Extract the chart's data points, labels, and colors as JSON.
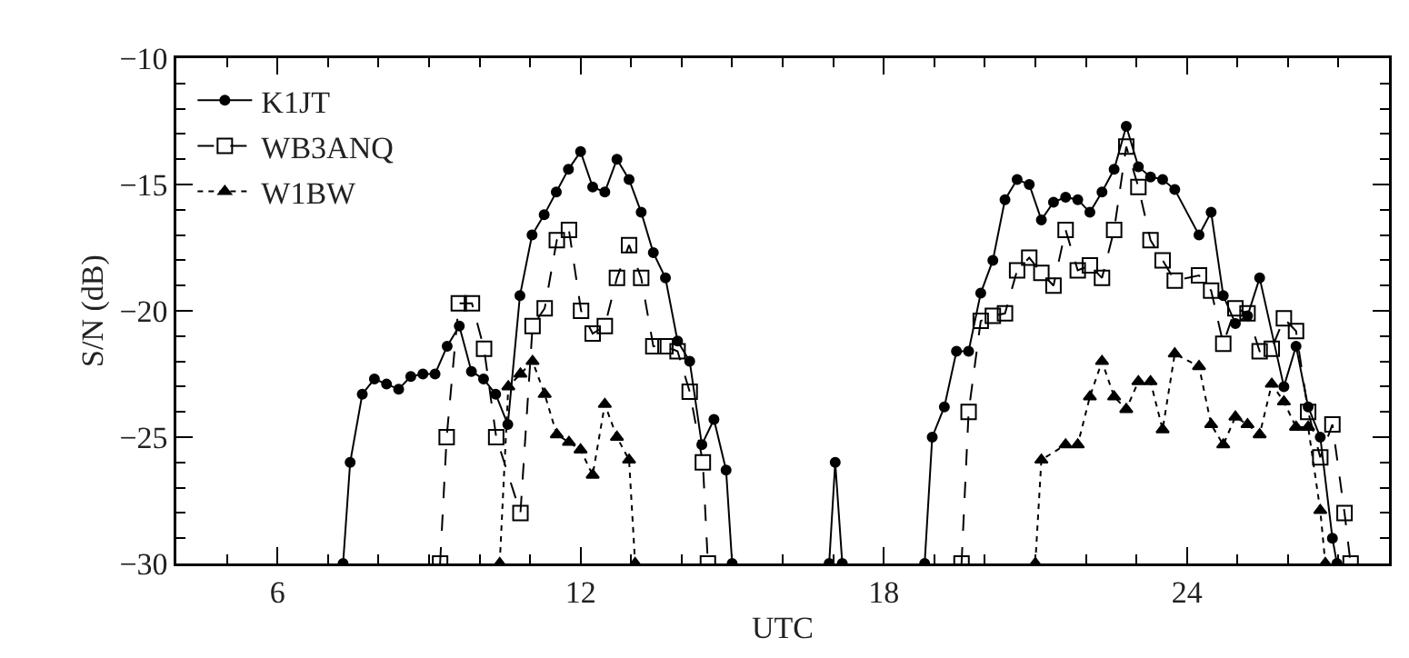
{
  "chart_data": {
    "type": "line",
    "xlabel": "UTC",
    "ylabel": "S/N (dB)",
    "xlim": [
      4,
      28
    ],
    "ylim": [
      -30,
      -10
    ],
    "xticks": [
      {
        "value": 5,
        "label": null
      },
      6,
      {
        "value": 7,
        "label": null
      },
      {
        "value": 8,
        "label": null
      },
      {
        "value": 9,
        "label": null
      },
      {
        "value": 10,
        "label": null
      },
      {
        "value": 11,
        "label": null
      },
      12,
      {
        "value": 13,
        "label": null
      },
      {
        "value": 14,
        "label": null
      },
      {
        "value": 15,
        "label": null
      },
      {
        "value": 16,
        "label": null
      },
      {
        "value": 17,
        "label": null
      },
      18,
      {
        "value": 19,
        "label": null
      },
      {
        "value": 20,
        "label": null
      },
      {
        "value": 21,
        "label": null
      },
      {
        "value": 22,
        "label": null
      },
      {
        "value": 23,
        "label": null
      },
      24,
      {
        "value": 25,
        "label": null
      },
      {
        "value": 26,
        "label": null
      },
      {
        "value": 27,
        "label": null
      }
    ],
    "yticks": [
      -30,
      {
        "value": -29,
        "label": null
      },
      {
        "value": -28,
        "label": null
      },
      {
        "value": -27,
        "label": null
      },
      {
        "value": -26,
        "label": null
      },
      -25,
      {
        "value": -24,
        "label": null
      },
      {
        "value": -23,
        "label": null
      },
      {
        "value": -22,
        "label": null
      },
      {
        "value": -21,
        "label": null
      },
      -20,
      {
        "value": -19,
        "label": null
      },
      {
        "value": -18,
        "label": null
      },
      {
        "value": -17,
        "label": null
      },
      {
        "value": -16,
        "label": null
      },
      -15,
      {
        "value": -14,
        "label": null
      },
      {
        "value": -13,
        "label": null
      },
      {
        "value": -12,
        "label": null
      },
      {
        "value": -11,
        "label": null
      },
      -10
    ],
    "grid": false,
    "legend": "top left",
    "series": [
      {
        "name": "K1JT",
        "color": "#000000",
        "marker": "circle",
        "line_style": "solid",
        "x": [
          7.3,
          7.44,
          7.68,
          7.92,
          8.16,
          8.4,
          8.64,
          8.88,
          9.12,
          9.36,
          9.6,
          9.84,
          10.08,
          10.32,
          10.56,
          10.8,
          11.04,
          11.28,
          11.52,
          11.76,
          12.0,
          12.24,
          12.48,
          12.72,
          12.96,
          13.2,
          13.44,
          13.68,
          13.92,
          14.16,
          14.4,
          14.64,
          14.88,
          15.0,
          16,
          16.92,
          17.04,
          17.18,
          18,
          18.81,
          18.96,
          19.2,
          19.44,
          19.68,
          19.92,
          20.16,
          20.4,
          20.64,
          20.88,
          21.12,
          21.36,
          21.6,
          21.84,
          22.08,
          22.32,
          22.56,
          22.8,
          23.04,
          23.28,
          23.52,
          23.76,
          24.24,
          24.48,
          24.72,
          24.96,
          25.2,
          25.44,
          25.92,
          26.16,
          26.4,
          26.64,
          26.88,
          26.97
        ],
        "values": [
          -30,
          -26.0,
          -23.3,
          -22.7,
          -22.9,
          -23.1,
          -22.6,
          -22.5,
          -22.5,
          -21.4,
          -20.6,
          -22.4,
          -22.7,
          -23.3,
          -24.5,
          -19.4,
          -17.0,
          -16.2,
          -15.3,
          -14.4,
          -13.7,
          -15.1,
          -15.3,
          -14.0,
          -14.8,
          -16.1,
          -17.7,
          -18.7,
          -21.2,
          -22.0,
          -25.3,
          -24.3,
          -26.3,
          -30,
          null,
          -30,
          -26.0,
          -30,
          null,
          -30,
          -25.0,
          -23.8,
          -21.6,
          -21.6,
          -19.3,
          -18.0,
          -15.6,
          -14.8,
          -15.0,
          -16.4,
          -15.7,
          -15.5,
          -15.6,
          -16.1,
          -15.3,
          -14.4,
          -12.7,
          -14.3,
          -14.7,
          -14.8,
          -15.2,
          -17.0,
          -16.1,
          -19.4,
          -20.5,
          -20.2,
          -18.7,
          -23.0,
          -21.4,
          -23.8,
          -25.0,
          -29.0,
          -30
        ]
      },
      {
        "name": "WB3ANQ",
        "color": "#000000",
        "marker": "square",
        "line_style": "dashed",
        "x": [
          9.22,
          9.35,
          9.59,
          9.85,
          10.09,
          10.33,
          10.81,
          11.05,
          11.29,
          11.53,
          11.77,
          12.01,
          12.24,
          12.48,
          12.72,
          12.96,
          13.2,
          13.44,
          13.68,
          13.92,
          14.16,
          14.42,
          14.52,
          17,
          19.54,
          19.68,
          19.92,
          20.16,
          20.4,
          20.64,
          20.88,
          21.12,
          21.36,
          21.6,
          21.84,
          22.08,
          22.32,
          22.56,
          22.8,
          23.04,
          23.28,
          23.52,
          23.76,
          24.24,
          24.48,
          24.72,
          24.96,
          25.2,
          25.44,
          25.68,
          25.92,
          26.16,
          26.4,
          26.64,
          26.88,
          27.12,
          27.24
        ],
        "values": [
          -30,
          -25.0,
          -19.7,
          -19.7,
          -21.5,
          -25.0,
          -28.0,
          -20.6,
          -19.9,
          -17.2,
          -16.8,
          -20.0,
          -20.9,
          -20.6,
          -18.7,
          -17.4,
          -18.7,
          -21.4,
          -21.4,
          -21.6,
          -23.2,
          -26.0,
          -30,
          null,
          -30,
          -24.0,
          -20.4,
          -20.2,
          -20.1,
          -18.4,
          -17.9,
          -18.5,
          -19.0,
          -16.8,
          -18.4,
          -18.2,
          -18.7,
          -16.8,
          -13.5,
          -15.1,
          -17.2,
          -18.0,
          -18.8,
          -18.6,
          -19.2,
          -21.3,
          -19.9,
          -20.1,
          -21.6,
          -21.5,
          -20.3,
          -20.8,
          -24.0,
          -25.8,
          -24.5,
          -28.0,
          -30
        ]
      },
      {
        "name": "W1BW",
        "color": "#000000",
        "marker": "triangle",
        "line_style": "dotted",
        "x": [
          10.4,
          10.57,
          10.81,
          11.05,
          11.29,
          11.53,
          11.77,
          12.0,
          12.24,
          12.48,
          12.72,
          12.96,
          13.08,
          17,
          21.0,
          21.12,
          21.6,
          21.84,
          22.08,
          22.32,
          22.56,
          22.8,
          23.04,
          23.28,
          23.52,
          23.76,
          24.24,
          24.48,
          24.72,
          24.96,
          25.2,
          25.44,
          25.68,
          25.92,
          26.16,
          26.4,
          26.64,
          26.74
        ],
        "values": [
          -30,
          -23.0,
          -22.5,
          -22.0,
          -23.3,
          -24.9,
          -25.2,
          -25.5,
          -26.5,
          -23.7,
          -25.0,
          -25.9,
          -30,
          null,
          -30,
          -25.9,
          -25.3,
          -25.3,
          -23.4,
          -22.0,
          -23.4,
          -23.9,
          -22.8,
          -22.8,
          -24.7,
          -21.7,
          -22.2,
          -24.5,
          -25.3,
          -24.2,
          -24.5,
          -24.9,
          -22.9,
          -23.6,
          -24.6,
          -24.6,
          -27.9,
          -30
        ]
      }
    ]
  }
}
